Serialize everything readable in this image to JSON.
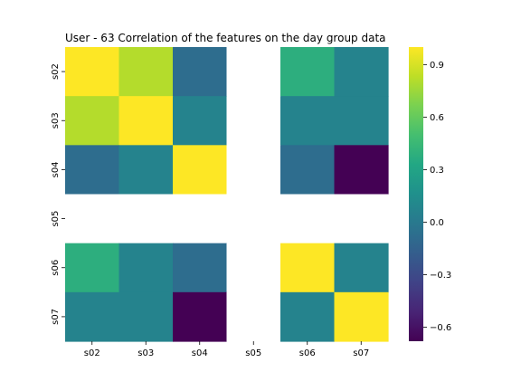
{
  "chart_data": {
    "type": "heatmap",
    "title": "User - 63 Correlation of the features on the day group data",
    "xlabel": "",
    "ylabel": "",
    "x_categories": [
      "s02",
      "s03",
      "s04",
      "s05",
      "s06",
      "s07"
    ],
    "y_categories": [
      "s02",
      "s03",
      "s04",
      "s05",
      "s06",
      "s07"
    ],
    "matrix": [
      [
        1.0,
        0.81,
        -0.08,
        null,
        0.38,
        0.07
      ],
      [
        0.81,
        1.0,
        0.07,
        null,
        0.07,
        0.07
      ],
      [
        -0.08,
        0.07,
        1.0,
        null,
        -0.08,
        -0.68
      ],
      [
        null,
        null,
        null,
        null,
        null,
        null
      ],
      [
        0.38,
        0.07,
        -0.08,
        null,
        1.0,
        0.07
      ],
      [
        0.07,
        0.07,
        -0.68,
        null,
        0.07,
        1.0
      ]
    ],
    "colorbar": {
      "vmin": -0.68,
      "vmax": 1.0,
      "ticks": [
        -0.6,
        -0.3,
        0.0,
        0.3,
        0.6,
        0.9
      ],
      "tick_labels": [
        "−0.6",
        "−0.3",
        "0.0",
        "0.3",
        "0.6",
        "0.9"
      ],
      "colormap": "viridis"
    },
    "missing_cell_color": "#ffffff",
    "grid": false,
    "legend": "colorbar-right"
  }
}
